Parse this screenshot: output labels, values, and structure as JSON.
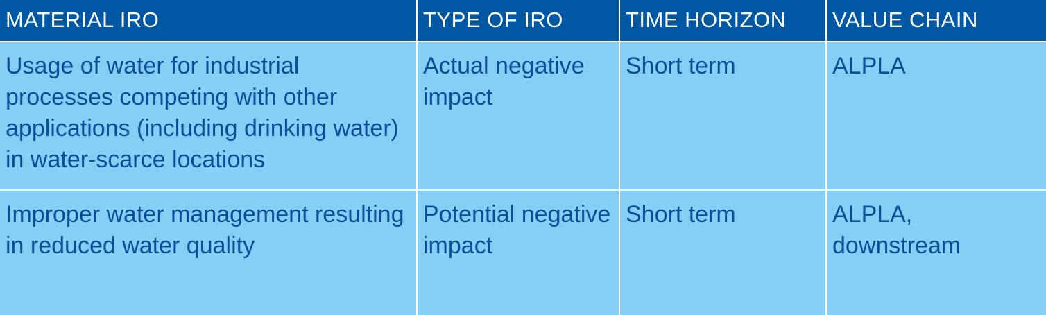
{
  "table": {
    "header": [
      "MATERIAL IRO",
      "TYPE OF IRO",
      "TIME HORIZON",
      "VALUE CHAIN"
    ],
    "rows": [
      [
        "Usage of water for industrial processes competing with other applications (including drinking water) in water-scarce locations",
        "Actual negative impact",
        "Short term",
        "ALPLA"
      ],
      [
        "Improper water management resulting in reduced water quality",
        "Potential negative impact",
        "Short term",
        "ALPLA, downstream"
      ]
    ]
  }
}
